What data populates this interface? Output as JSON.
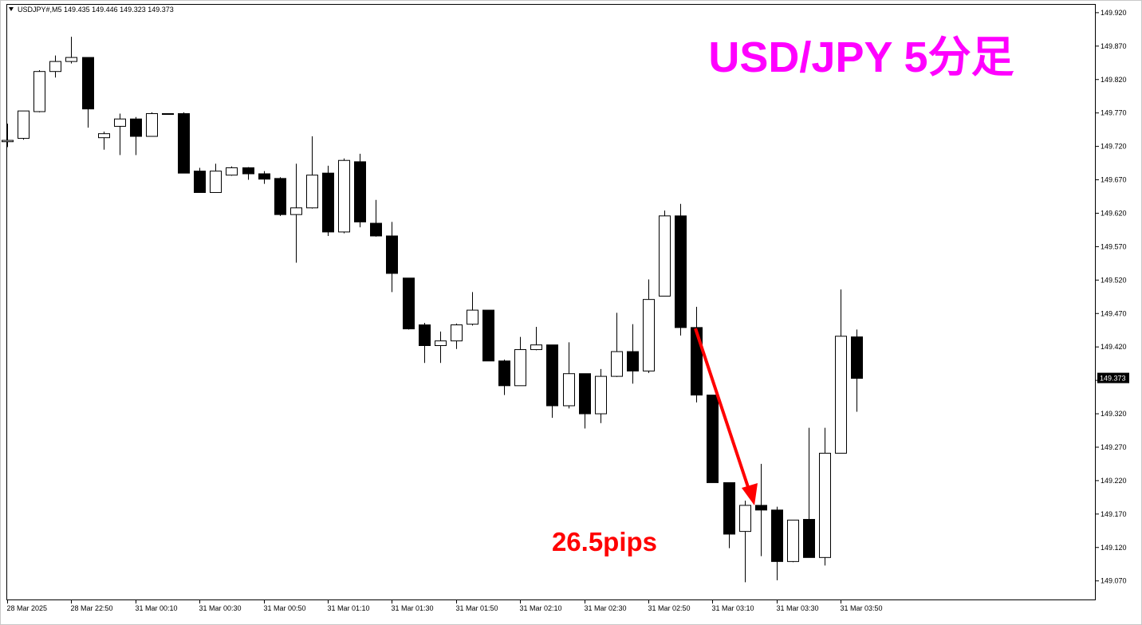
{
  "chart_data": {
    "type": "candlestick",
    "title": "USD/JPY 5分足",
    "symbol": "USDJPY#,M5",
    "annotation": "26.5pips",
    "x": [
      "28 Mar 2025",
      null,
      null,
      null,
      "28 Mar 22:50",
      null,
      null,
      null,
      "31 Mar 00:10",
      null,
      null,
      null,
      "31 Mar 00:30",
      null,
      null,
      null,
      "31 Mar 00:50",
      null,
      null,
      null,
      "31 Mar 01:10",
      null,
      null,
      null,
      "31 Mar 01:30",
      null,
      null,
      null,
      "31 Mar 01:50",
      null,
      null,
      null,
      "31 Mar 02:10",
      null,
      null,
      null,
      "31 Mar 02:30",
      null,
      null,
      null,
      "31 Mar 02:50",
      null,
      null,
      null,
      "31 Mar 03:10",
      null,
      null,
      null,
      "31 Mar 03:30",
      null,
      null,
      null,
      "31 Mar 03:50",
      null
    ],
    "open": [
      149.727,
      149.732,
      149.772,
      149.832,
      149.847,
      149.853,
      149.733,
      149.75,
      149.761,
      149.735,
      149.769,
      149.769,
      149.683,
      149.651,
      149.677,
      149.688,
      149.679,
      149.672,
      149.618,
      149.628,
      149.68,
      149.592,
      149.697,
      149.605,
      149.586,
      149.523,
      149.453,
      149.422,
      149.429,
      149.454,
      149.475,
      149.399,
      149.362,
      149.416,
      149.423,
      149.332,
      149.38,
      149.32,
      149.376,
      149.413,
      149.384,
      149.496,
      149.616,
      149.449,
      149.348,
      149.217,
      149.144,
      149.183,
      149.176,
      149.099,
      149.162,
      149.105,
      149.261,
      149.435
    ],
    "high": [
      149.754,
      149.773,
      149.834,
      149.856,
      149.884,
      149.853,
      149.742,
      149.769,
      149.764,
      149.771,
      149.769,
      149.771,
      149.688,
      149.694,
      149.69,
      149.689,
      149.683,
      149.674,
      149.694,
      149.735,
      149.691,
      149.702,
      149.709,
      149.64,
      149.607,
      149.523,
      149.456,
      149.443,
      149.455,
      149.502,
      149.475,
      149.401,
      149.435,
      149.45,
      149.423,
      149.427,
      149.38,
      149.387,
      149.471,
      149.454,
      149.521,
      149.624,
      149.634,
      149.48,
      149.348,
      149.217,
      149.19,
      149.245,
      149.181,
      149.161,
      149.299,
      149.299,
      149.506,
      149.446
    ],
    "low": [
      149.719,
      149.73,
      149.771,
      149.823,
      149.844,
      149.748,
      149.715,
      149.707,
      149.707,
      149.735,
      149.769,
      149.68,
      149.651,
      149.651,
      149.676,
      149.67,
      149.664,
      149.616,
      149.546,
      149.627,
      149.586,
      149.59,
      149.599,
      149.585,
      149.502,
      149.446,
      149.396,
      149.396,
      149.417,
      149.452,
      149.399,
      149.348,
      149.362,
      149.415,
      149.314,
      149.328,
      149.298,
      149.306,
      149.375,
      149.365,
      149.381,
      149.496,
      149.437,
      149.337,
      149.217,
      149.119,
      149.068,
      149.107,
      149.071,
      149.098,
      149.105,
      149.093,
      149.261,
      149.323
    ],
    "close": [
      149.729,
      149.773,
      149.832,
      149.847,
      149.853,
      149.776,
      149.739,
      149.761,
      149.735,
      149.769,
      149.769,
      149.68,
      149.651,
      149.683,
      149.688,
      149.679,
      149.671,
      149.618,
      149.628,
      149.677,
      149.592,
      149.699,
      149.607,
      149.586,
      149.53,
      149.447,
      149.422,
      149.429,
      149.453,
      149.475,
      149.399,
      149.362,
      149.416,
      149.423,
      149.332,
      149.38,
      149.32,
      149.376,
      149.413,
      149.384,
      149.491,
      149.616,
      149.449,
      149.348,
      149.217,
      149.14,
      149.183,
      149.176,
      149.099,
      149.161,
      149.105,
      149.261,
      149.436,
      149.373
    ],
    "up_color": "#ffffff",
    "down_color": "#000000",
    "ylim": [
      149.041,
      149.933
    ],
    "yticks": [
      {
        "value": 149.07,
        "label": "149.070"
      },
      {
        "value": 149.12,
        "label": "149.120"
      },
      {
        "value": 149.17,
        "label": "149.170"
      },
      {
        "value": 149.22,
        "label": "149.220"
      },
      {
        "value": 149.27,
        "label": "149.270"
      },
      {
        "value": 149.32,
        "label": "149.320"
      },
      {
        "value": 149.37,
        "label": "149.370"
      },
      {
        "value": 149.42,
        "label": "149.420"
      },
      {
        "value": 149.47,
        "label": "149.470"
      },
      {
        "value": 149.52,
        "label": "149.520"
      },
      {
        "value": 149.57,
        "label": "149.570"
      },
      {
        "value": 149.62,
        "label": "149.620"
      },
      {
        "value": 149.67,
        "label": "149.670"
      },
      {
        "value": 149.72,
        "label": "149.720"
      },
      {
        "value": 149.77,
        "label": "149.770"
      },
      {
        "value": 149.82,
        "label": "149.820"
      },
      {
        "value": 149.87,
        "label": "149.870"
      },
      {
        "value": 149.92,
        "label": "149.920"
      }
    ]
  }
}
